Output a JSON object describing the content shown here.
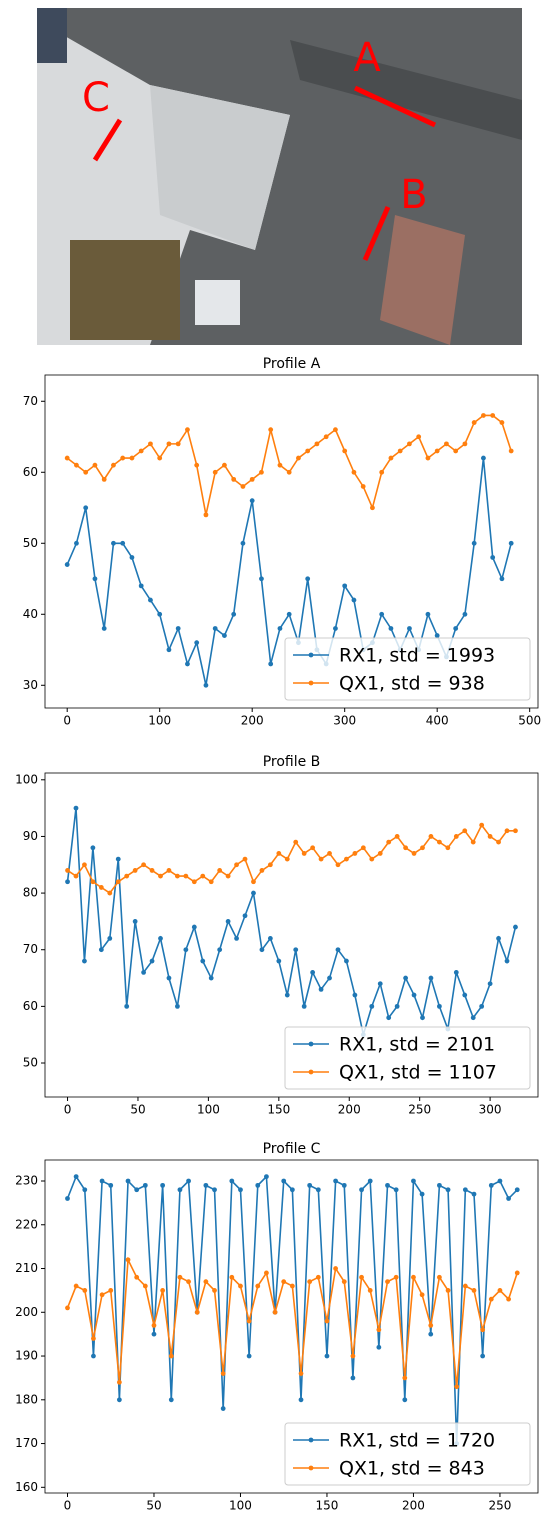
{
  "image": {
    "labels": [
      "A",
      "B",
      "C"
    ]
  },
  "chart_data": [
    {
      "type": "line",
      "title": "Profile A",
      "xlim": [
        -24,
        509
      ],
      "ylim": [
        26.8,
        73.7
      ],
      "xticks": [
        0,
        100,
        200,
        300,
        400,
        500
      ],
      "yticks": [
        30,
        40,
        50,
        60,
        70
      ],
      "legend": "lower right",
      "x": [
        0,
        10,
        20,
        30,
        40,
        50,
        60,
        70,
        80,
        90,
        100,
        110,
        120,
        130,
        140,
        150,
        160,
        170,
        180,
        190,
        200,
        210,
        220,
        230,
        240,
        250,
        260,
        270,
        280,
        290,
        300,
        310,
        320,
        330,
        340,
        350,
        360,
        370,
        380,
        390,
        400,
        410,
        420,
        430,
        440,
        450,
        460,
        470,
        480
      ],
      "series": [
        {
          "name": "RX1, std = 1993",
          "color": "#1f77b4",
          "values": [
            47,
            50,
            55,
            45,
            38,
            50,
            50,
            48,
            44,
            42,
            40,
            35,
            38,
            33,
            36,
            30,
            38,
            37,
            40,
            50,
            56,
            45,
            33,
            38,
            40,
            36,
            45,
            35,
            33,
            38,
            44,
            42,
            35,
            36,
            40,
            38,
            35,
            38,
            35,
            40,
            37,
            34,
            38,
            40,
            50,
            62,
            48,
            45,
            50
          ]
        },
        {
          "name": "QX1, std = 938",
          "color": "#ff7f0e",
          "values": [
            62,
            61,
            60,
            61,
            59,
            61,
            62,
            62,
            63,
            64,
            62,
            64,
            64,
            66,
            61,
            54,
            60,
            61,
            59,
            58,
            59,
            60,
            66,
            61,
            60,
            62,
            63,
            64,
            65,
            66,
            63,
            60,
            58,
            55,
            60,
            62,
            63,
            64,
            65,
            62,
            63,
            64,
            63,
            64,
            67,
            68,
            68,
            67,
            63
          ]
        }
      ]
    },
    {
      "type": "line",
      "title": "Profile B",
      "xlim": [
        -16,
        334
      ],
      "ylim": [
        44,
        101.2
      ],
      "xticks": [
        0,
        50,
        100,
        150,
        200,
        250,
        300
      ],
      "yticks": [
        50,
        60,
        70,
        80,
        90,
        100
      ],
      "legend": "lower right",
      "x": [
        0,
        6,
        12,
        18,
        24,
        30,
        36,
        42,
        48,
        54,
        60,
        66,
        72,
        78,
        84,
        90,
        96,
        102,
        108,
        114,
        120,
        126,
        132,
        138,
        144,
        150,
        156,
        162,
        168,
        174,
        180,
        186,
        192,
        198,
        204,
        210,
        216,
        222,
        228,
        234,
        240,
        246,
        252,
        258,
        264,
        270,
        276,
        282,
        288,
        294,
        300,
        306,
        312,
        318
      ],
      "series": [
        {
          "name": "RX1, std = 2101",
          "color": "#1f77b4",
          "values": [
            82,
            95,
            68,
            88,
            70,
            72,
            86,
            60,
            75,
            66,
            68,
            72,
            65,
            60,
            70,
            74,
            68,
            65,
            70,
            75,
            72,
            76,
            80,
            70,
            72,
            68,
            62,
            70,
            60,
            66,
            63,
            65,
            70,
            68,
            62,
            55,
            60,
            64,
            58,
            60,
            65,
            62,
            58,
            65,
            60,
            56,
            66,
            62,
            58,
            60,
            64,
            72,
            68,
            74
          ]
        },
        {
          "name": "QX1, std = 1107",
          "color": "#ff7f0e",
          "values": [
            84,
            83,
            85,
            82,
            81,
            80,
            82,
            83,
            84,
            85,
            84,
            83,
            84,
            83,
            83,
            82,
            83,
            82,
            84,
            83,
            85,
            86,
            82,
            84,
            85,
            87,
            86,
            89,
            87,
            88,
            86,
            87,
            85,
            86,
            87,
            88,
            86,
            87,
            89,
            90,
            88,
            87,
            88,
            90,
            89,
            88,
            90,
            91,
            89,
            92,
            90,
            89,
            91,
            91
          ]
        }
      ]
    },
    {
      "type": "line",
      "title": "Profile C",
      "xlim": [
        -13,
        272
      ],
      "ylim": [
        158.7,
        234.8
      ],
      "xticks": [
        0,
        50,
        100,
        150,
        200,
        250
      ],
      "yticks": [
        160,
        170,
        180,
        190,
        200,
        210,
        220,
        230
      ],
      "legend": "lower right",
      "x": [
        0,
        5,
        10,
        15,
        20,
        25,
        30,
        35,
        40,
        45,
        50,
        55,
        60,
        65,
        70,
        75,
        80,
        85,
        90,
        95,
        100,
        105,
        110,
        115,
        120,
        125,
        130,
        135,
        140,
        145,
        150,
        155,
        160,
        165,
        170,
        175,
        180,
        185,
        190,
        195,
        200,
        205,
        210,
        215,
        220,
        225,
        230,
        235,
        240,
        245,
        250,
        255,
        260
      ],
      "series": [
        {
          "name": "RX1, std = 1720",
          "color": "#1f77b4",
          "values": [
            226,
            231,
            228,
            190,
            230,
            229,
            180,
            230,
            228,
            229,
            195,
            229,
            180,
            228,
            230,
            200,
            229,
            228,
            178,
            230,
            228,
            190,
            229,
            231,
            200,
            230,
            228,
            180,
            229,
            228,
            190,
            230,
            229,
            185,
            228,
            230,
            192,
            229,
            228,
            180,
            230,
            227,
            195,
            229,
            228,
            170,
            228,
            227,
            190,
            229,
            230,
            226,
            228
          ]
        },
        {
          "name": "QX1, std = 843",
          "color": "#ff7f0e",
          "values": [
            201,
            206,
            205,
            194,
            204,
            205,
            184,
            212,
            208,
            206,
            197,
            205,
            190,
            208,
            207,
            200,
            207,
            205,
            186,
            208,
            206,
            198,
            206,
            209,
            200,
            207,
            206,
            186,
            207,
            208,
            198,
            210,
            207,
            190,
            208,
            205,
            196,
            207,
            208,
            185,
            208,
            204,
            197,
            208,
            205,
            183,
            206,
            205,
            196,
            203,
            205,
            203,
            209
          ]
        }
      ]
    }
  ]
}
